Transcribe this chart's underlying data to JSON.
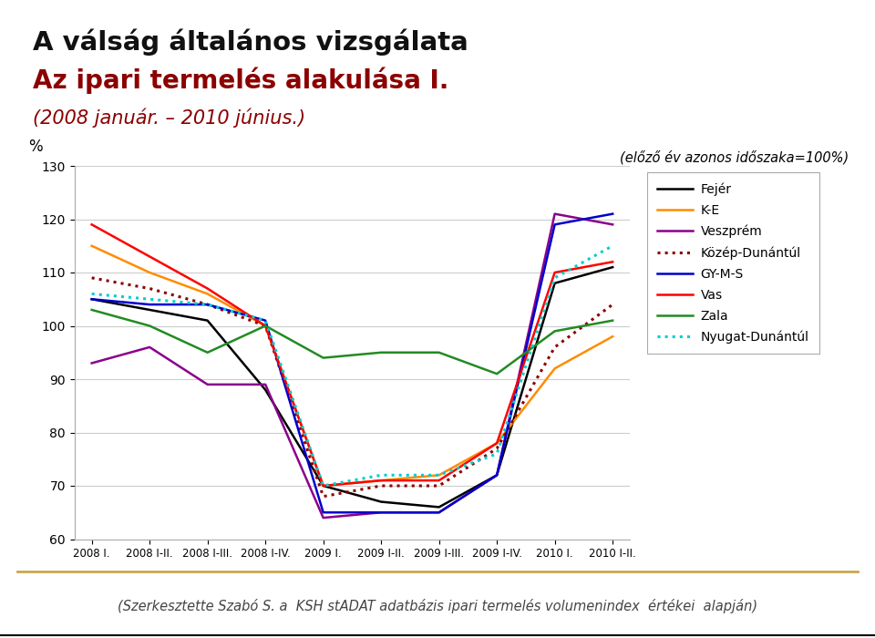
{
  "title_line1": "A válság általános vizsgálata",
  "title_line2": "Az ipari termelés alakulása I.",
  "title_line3": "(2008 január. – 2010 június.)",
  "subtitle": "(előző év azonos időszaka=100%)",
  "ylabel": "%",
  "xlabel_note": "(Szerkesztette Szabó S. a  KSH stADAT adatbázis ipari termelés volumenindex  értékei  alapján)",
  "x_labels": [
    "2008 I.",
    "2008 I-II.",
    "2008 I-III.",
    "2008 I-IV.",
    "2009 I.",
    "2009 I-II.",
    "2009 I-III.",
    "2009 I-IV.",
    "2010 I.",
    "2010 I-II."
  ],
  "ylim": [
    60,
    130
  ],
  "yticks": [
    60,
    70,
    80,
    90,
    100,
    110,
    120,
    130
  ],
  "series": [
    {
      "name": "Fejér",
      "color": "#000000",
      "linestyle": "solid",
      "linewidth": 1.8,
      "values": [
        105,
        103,
        101,
        88,
        70,
        67,
        66,
        72,
        108,
        111
      ]
    },
    {
      "name": "K-E",
      "color": "#FF8C00",
      "linestyle": "solid",
      "linewidth": 1.8,
      "values": [
        115,
        110,
        106,
        100,
        70,
        71,
        72,
        78,
        92,
        98
      ]
    },
    {
      "name": "Veszprém",
      "color": "#8B008B",
      "linestyle": "solid",
      "linewidth": 1.8,
      "values": [
        93,
        96,
        89,
        89,
        64,
        65,
        65,
        72,
        121,
        119
      ]
    },
    {
      "name": "Közép-Dunántúl",
      "color": "#8B0000",
      "linestyle": "dotted",
      "linewidth": 2.2,
      "values": [
        109,
        107,
        104,
        100,
        68,
        70,
        70,
        77,
        96,
        104
      ]
    },
    {
      "name": "GY-M-S",
      "color": "#0000CD",
      "linestyle": "solid",
      "linewidth": 1.8,
      "values": [
        105,
        104,
        104,
        101,
        65,
        65,
        65,
        72,
        119,
        121
      ]
    },
    {
      "name": "Vas",
      "color": "#FF0000",
      "linestyle": "solid",
      "linewidth": 1.8,
      "values": [
        119,
        113,
        107,
        100,
        70,
        71,
        71,
        78,
        110,
        112
      ]
    },
    {
      "name": "Zala",
      "color": "#228B22",
      "linestyle": "solid",
      "linewidth": 1.8,
      "values": [
        103,
        100,
        95,
        100,
        94,
        95,
        95,
        91,
        99,
        101
      ]
    },
    {
      "name": "Nyugat-Dunántúl",
      "color": "#00CED1",
      "linestyle": "dotted",
      "linewidth": 2.2,
      "values": [
        106,
        105,
        104,
        101,
        70,
        72,
        72,
        76,
        109,
        115
      ]
    }
  ],
  "background_color": "#ffffff",
  "plot_bg_color": "#ffffff",
  "title_color1": "#8B0000",
  "title_color2": "#8B0000",
  "title_color3": "#8B0000",
  "subtitle_color": "#000000",
  "footer_color": "#444444",
  "accent_bar_color": "#C8A850",
  "left_bar_color": "#C8A850"
}
